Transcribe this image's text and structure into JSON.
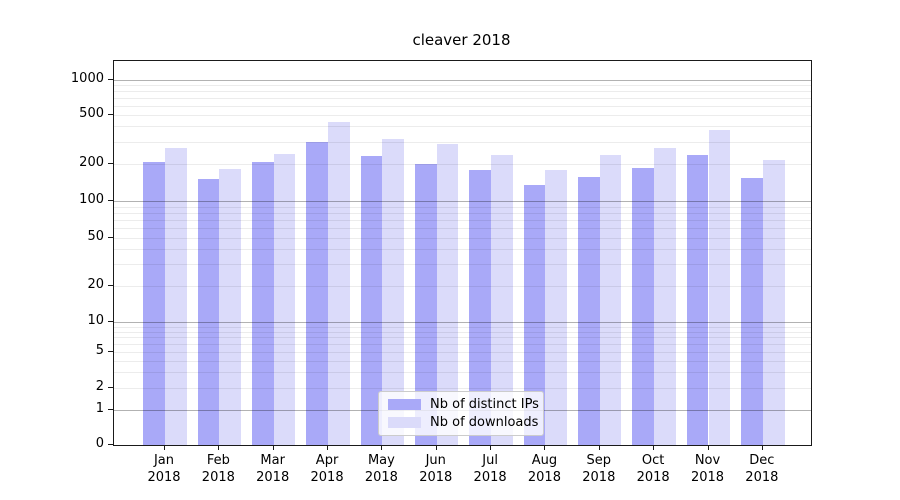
{
  "title": "cleaver 2018",
  "colors": {
    "distinct_ips": "#a9a9f8",
    "downloads": "#dbdbfa",
    "axis": "#1a1a1a"
  },
  "legend": {
    "items": [
      {
        "label": "Nb of distinct IPs",
        "series_key": "distinct_ips"
      },
      {
        "label": "Nb of downloads",
        "series_key": "downloads"
      }
    ]
  },
  "chart_data": {
    "type": "bar",
    "title": "cleaver 2018",
    "categories": [
      "Jan 2018",
      "Feb 2018",
      "Mar 2018",
      "Apr 2018",
      "May 2018",
      "Jun 2018",
      "Jul 2018",
      "Aug 2018",
      "Sep 2018",
      "Oct 2018",
      "Nov 2018",
      "Dec 2018"
    ],
    "series": [
      {
        "name": "Nb of distinct IPs",
        "color_key": "distinct_ips",
        "values": [
          208,
          152,
          208,
          300,
          234,
          201,
          178,
          135,
          158,
          185,
          238,
          155
        ]
      },
      {
        "name": "Nb of downloads",
        "color_key": "downloads",
        "values": [
          273,
          184,
          244,
          435,
          317,
          289,
          238,
          180,
          237,
          270,
          375,
          217
        ]
      }
    ],
    "xlabel": "",
    "ylabel": "",
    "y_scale": "symlog",
    "y_ticks": [
      0,
      1,
      2,
      5,
      10,
      20,
      50,
      100,
      200,
      500,
      1000
    ],
    "ylim": [
      0,
      1450
    ],
    "grid": "horizontal, log minor + decade major",
    "legend_position": "lower center inside plot"
  }
}
